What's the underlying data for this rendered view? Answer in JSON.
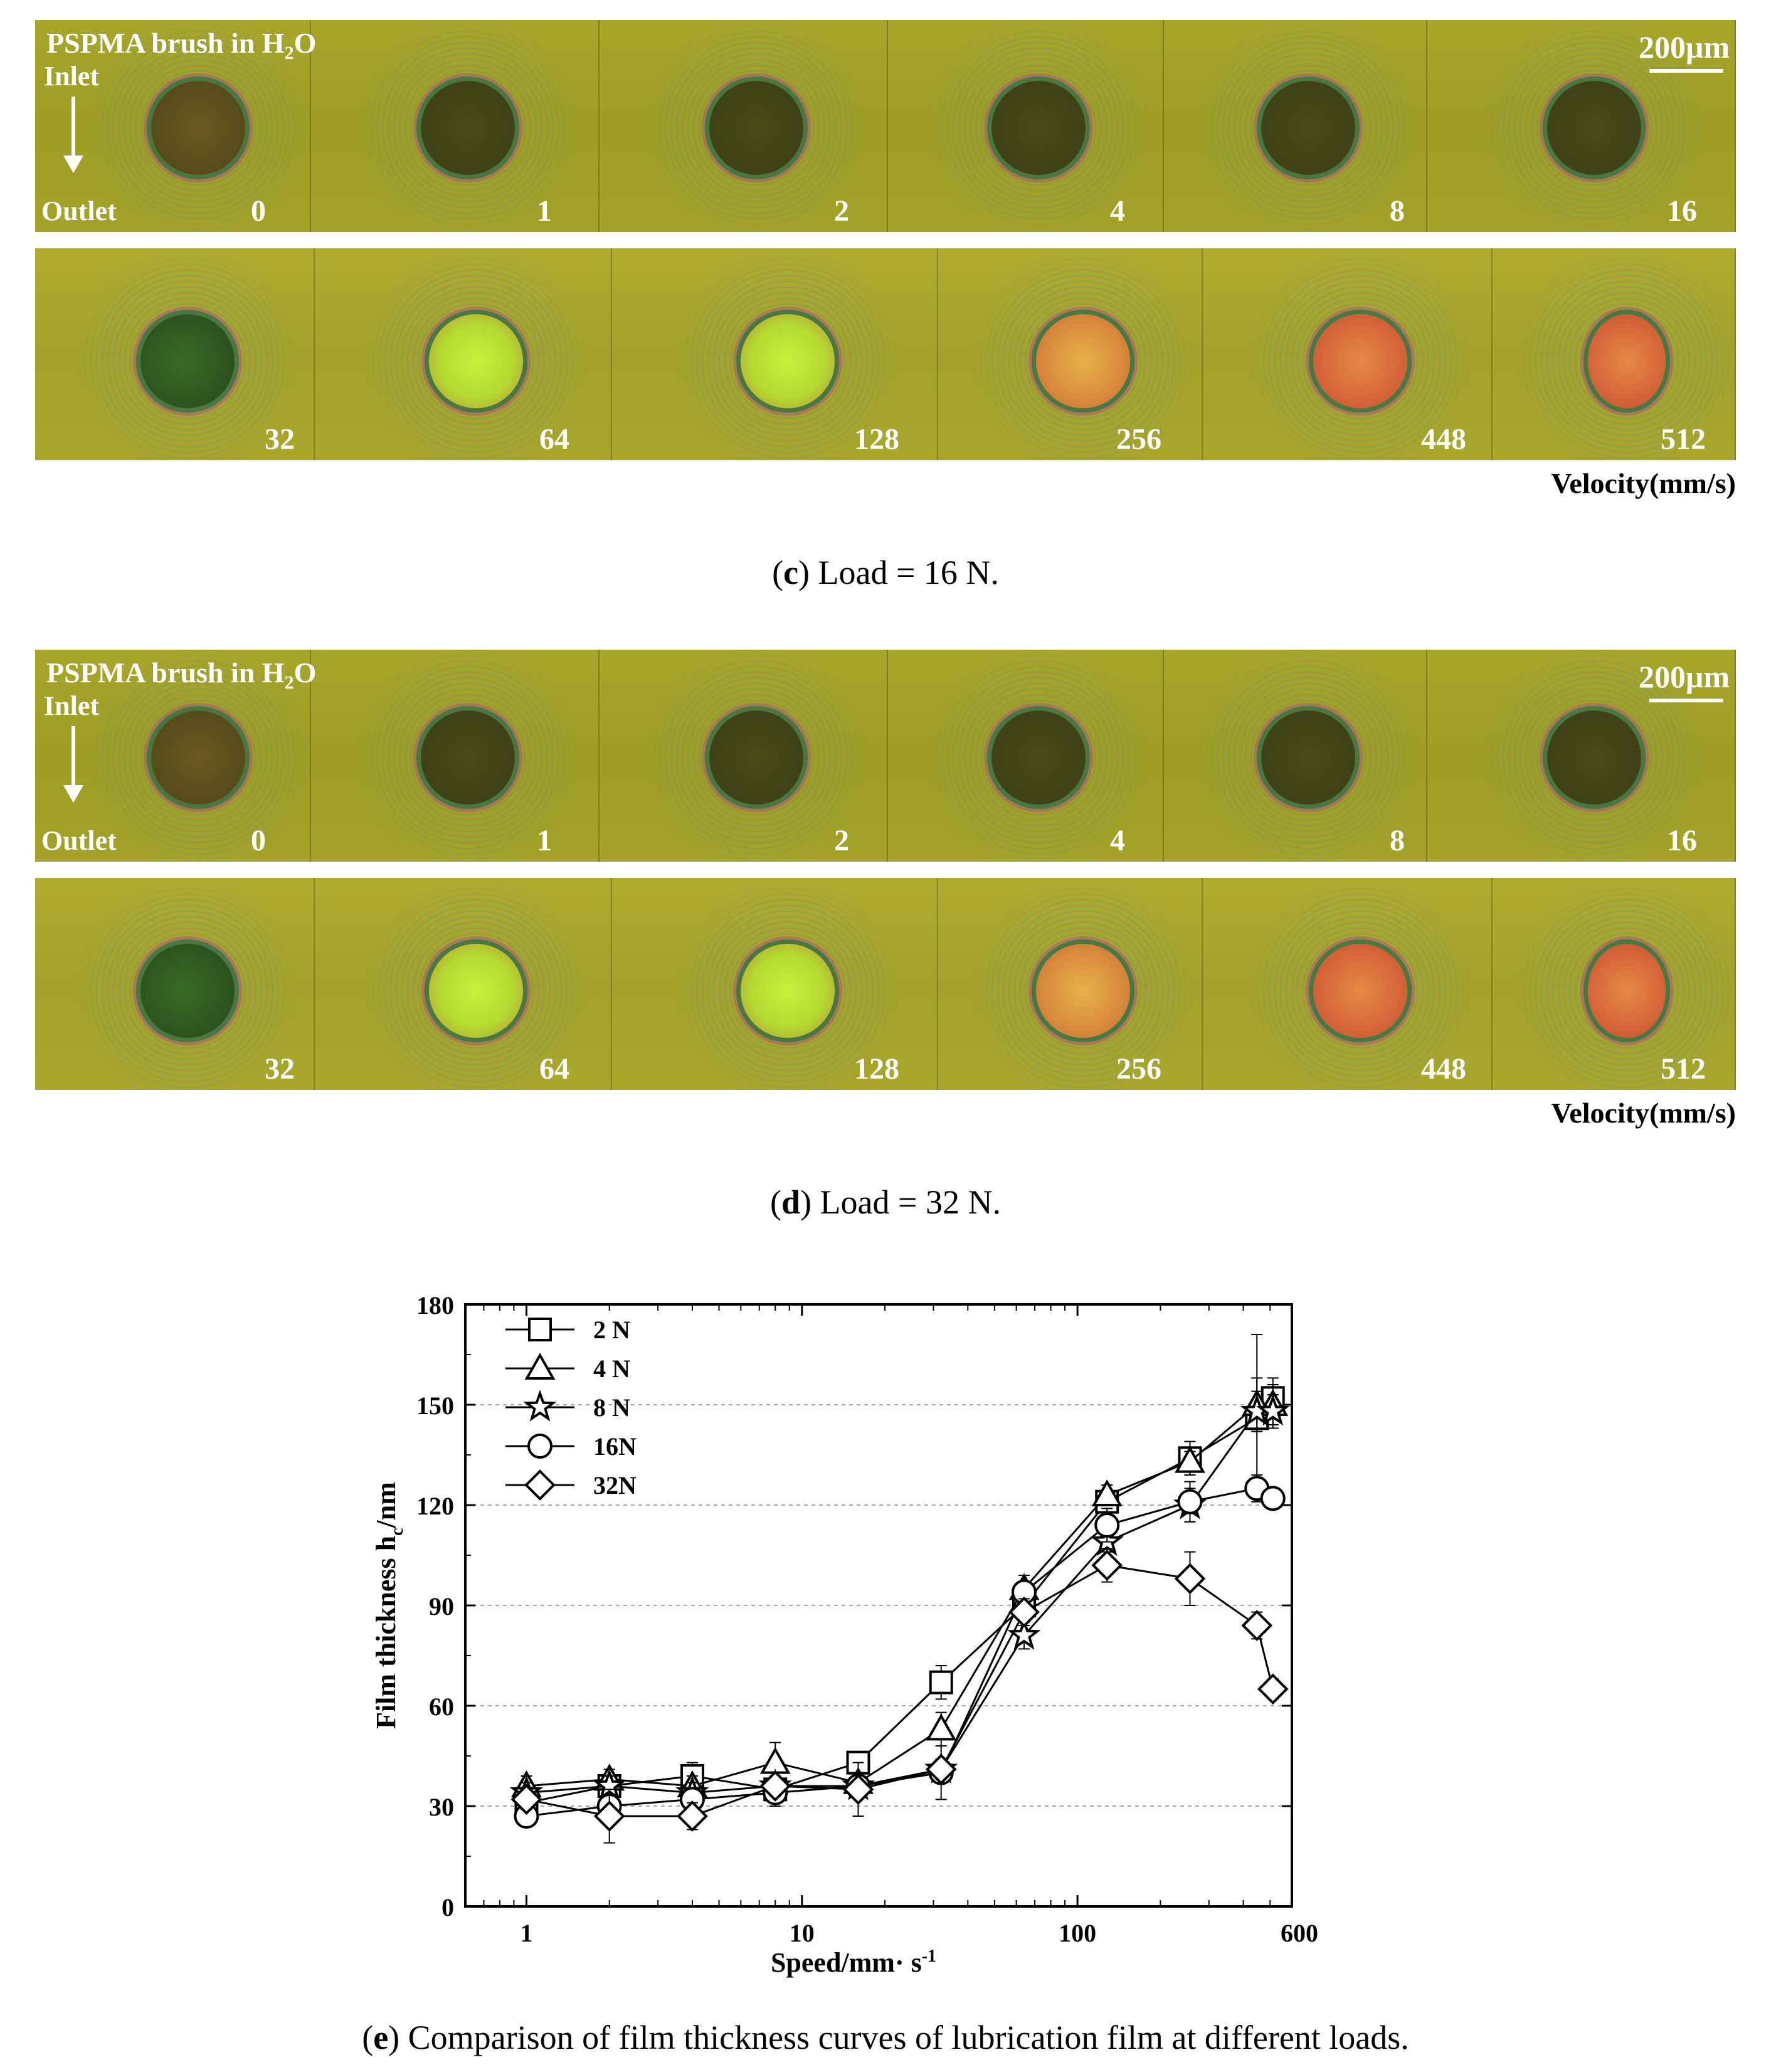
{
  "panels": [
    {
      "id": "c",
      "title": "PSPMA brush in H",
      "title_sub": "2",
      "title_end": "O",
      "inlet": "Inlet",
      "outlet": "Outlet",
      "scale_bar": "200μm",
      "row1_velocities": [
        "0",
        "1",
        "2",
        "4",
        "8",
        "16"
      ],
      "row2_velocities": [
        "32",
        "64",
        "128",
        "256",
        "448",
        "512"
      ],
      "velocity_unit": "Velocity(mm/s)",
      "caption_letter": "c",
      "caption_text": ") Load = 16 N."
    },
    {
      "id": "d",
      "title": "PSPMA brush in H",
      "title_sub": "2",
      "title_end": "O",
      "inlet": "Inlet",
      "outlet": "Outlet",
      "scale_bar": "200μm",
      "row1_velocities": [
        "0",
        "1",
        "2",
        "4",
        "8",
        "16"
      ],
      "row2_velocities": [
        "32",
        "64",
        "128",
        "256",
        "448",
        "512"
      ],
      "velocity_unit": "Velocity(mm/s)",
      "caption_letter": "d",
      "caption_text": ") Load = 32 N."
    }
  ],
  "chart_data": {
    "type": "line",
    "x_scale": "log",
    "xlabel": "Speed/mm· s",
    "xlabel_sup": "-1",
    "ylabel": "Film thickness h",
    "ylabel_sub": "c",
    "ylabel_end": "/nm",
    "xlim": [
      0.6,
      600
    ],
    "ylim": [
      0,
      180
    ],
    "xticks": [
      1,
      10,
      100,
      600
    ],
    "xtick_labels": [
      "1",
      "10",
      "100",
      "600"
    ],
    "yticks": [
      0,
      30,
      60,
      90,
      120,
      150,
      180
    ],
    "ytick_labels": [
      "0",
      "30",
      "60",
      "90",
      "120",
      "150",
      "180"
    ],
    "grid_y": true,
    "legend_position": "top-left",
    "x": [
      1,
      2,
      4,
      8,
      16,
      32,
      64,
      128,
      256,
      448,
      512
    ],
    "series": [
      {
        "name": "2 N",
        "marker": "square",
        "values": [
          31,
          36,
          39,
          35,
          43,
          67,
          90,
          121,
          134,
          146,
          152
        ],
        "errors": [
          3,
          3,
          4,
          3,
          3,
          5,
          4,
          3,
          5,
          25,
          6
        ]
      },
      {
        "name": "4 N",
        "marker": "triangle",
        "values": [
          36,
          38,
          36,
          43,
          37,
          53,
          95,
          123,
          133,
          150,
          150
        ],
        "errors": [
          3,
          3,
          3,
          6,
          3,
          5,
          4,
          3,
          3,
          8,
          6
        ]
      },
      {
        "name": "8 N",
        "marker": "star",
        "values": [
          34,
          36,
          34,
          36,
          36,
          41,
          81,
          109,
          120,
          148,
          148
        ],
        "errors": [
          3,
          3,
          3,
          3,
          3,
          3,
          4,
          3,
          5,
          6,
          5
        ]
      },
      {
        "name": "16N",
        "marker": "circle",
        "values": [
          27,
          30,
          32,
          34,
          36,
          40,
          94,
          114,
          121,
          125,
          122
        ],
        "errors": [
          3,
          3,
          3,
          4,
          3,
          8,
          5,
          5,
          6,
          4,
          3
        ]
      },
      {
        "name": "32N",
        "marker": "diamond",
        "values": [
          32,
          27,
          27,
          36,
          35,
          41,
          88,
          102,
          98,
          84,
          65
        ],
        "errors": [
          3,
          8,
          4,
          3,
          8,
          3,
          4,
          5,
          8,
          4,
          3
        ]
      }
    ],
    "caption_letter": "e",
    "caption_text": ") Comparison of film thickness curves of lubrication film at different loads."
  }
}
